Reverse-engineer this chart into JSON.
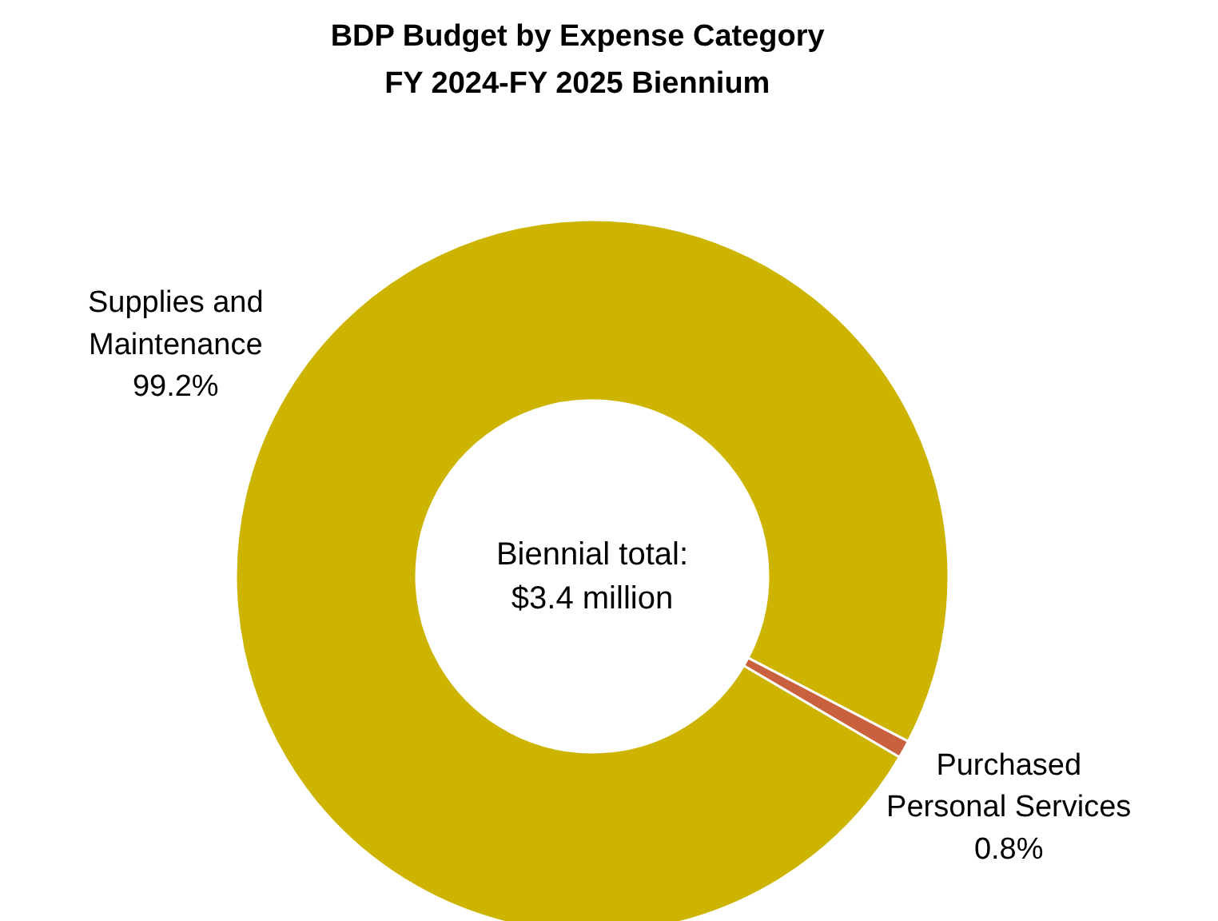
{
  "chart_data": {
    "type": "donut",
    "title": "BDP Budget by Expense Category\nFY 2024-FY 2025 Biennium",
    "categories": [
      "Supplies and Maintenance",
      "Purchased Personal Services"
    ],
    "values": [
      99.2,
      0.8
    ],
    "colors": [
      "#cdb400",
      "#c9603e"
    ],
    "value_labels": [
      "99.2%",
      "0.8%"
    ],
    "annotations": [
      "Biennial total:\n$3.4 million"
    ]
  }
}
